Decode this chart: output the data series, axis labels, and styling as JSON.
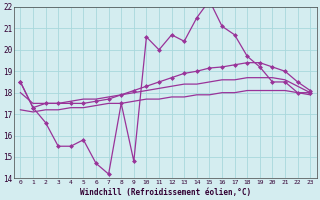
{
  "x": [
    0,
    1,
    2,
    3,
    4,
    5,
    6,
    7,
    8,
    9,
    10,
    11,
    12,
    13,
    14,
    15,
    16,
    17,
    18,
    19,
    20,
    21,
    22,
    23
  ],
  "line1": [
    18.5,
    17.3,
    16.6,
    15.5,
    15.5,
    15.8,
    14.7,
    14.2,
    17.5,
    14.8,
    20.6,
    20.0,
    20.7,
    20.4,
    21.5,
    22.3,
    21.1,
    20.7,
    19.7,
    19.2,
    18.5,
    18.5,
    18.0,
    18.0
  ],
  "line2": [
    18.5,
    17.3,
    17.5,
    17.5,
    17.5,
    17.5,
    17.6,
    17.7,
    17.9,
    18.1,
    18.3,
    18.5,
    18.7,
    18.9,
    19.0,
    19.15,
    19.2,
    19.3,
    19.4,
    19.4,
    19.2,
    19.0,
    18.5,
    18.1
  ],
  "line3": [
    18.0,
    17.5,
    17.5,
    17.5,
    17.6,
    17.7,
    17.7,
    17.8,
    17.9,
    18.0,
    18.1,
    18.2,
    18.3,
    18.4,
    18.4,
    18.5,
    18.6,
    18.6,
    18.7,
    18.7,
    18.7,
    18.6,
    18.3,
    18.0
  ],
  "line4": [
    17.2,
    17.1,
    17.2,
    17.2,
    17.3,
    17.3,
    17.4,
    17.5,
    17.5,
    17.6,
    17.7,
    17.7,
    17.8,
    17.8,
    17.9,
    17.9,
    18.0,
    18.0,
    18.1,
    18.1,
    18.1,
    18.1,
    18.0,
    17.9
  ],
  "line_color": "#993399",
  "bg_color": "#d4edf0",
  "grid_color": "#a8d8dc",
  "ylim": [
    14,
    22
  ],
  "xlim": [
    -0.5,
    23.5
  ],
  "xlabel": "Windchill (Refroidissement éolien,°C)",
  "yticks": [
    14,
    15,
    16,
    17,
    18,
    19,
    20,
    21,
    22
  ],
  "xticks": [
    0,
    1,
    2,
    3,
    4,
    5,
    6,
    7,
    8,
    9,
    10,
    11,
    12,
    13,
    14,
    15,
    16,
    17,
    18,
    19,
    20,
    21,
    22,
    23
  ]
}
